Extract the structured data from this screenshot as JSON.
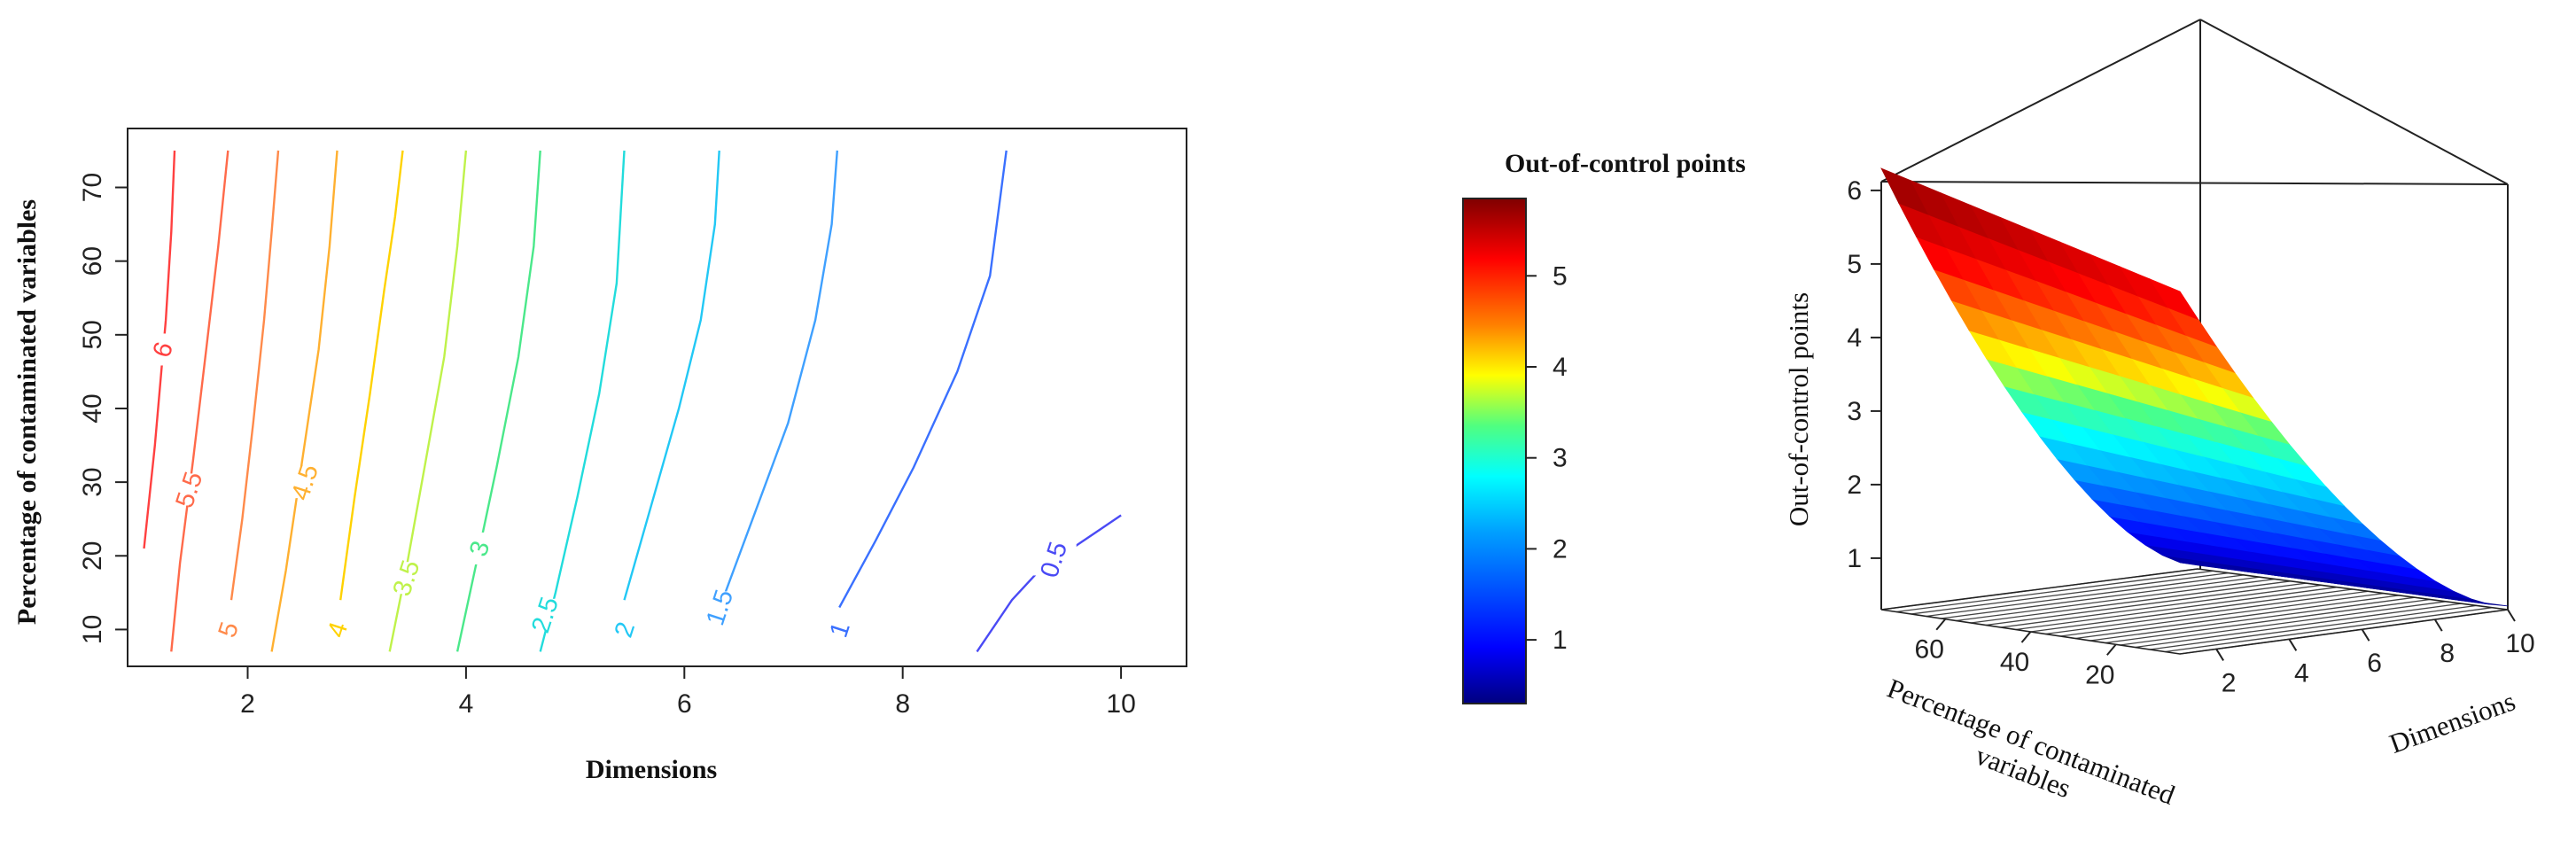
{
  "colors": {
    "jet": [
      "#00007f",
      "#0000ff",
      "#007fff",
      "#00ffff",
      "#7fff7f",
      "#ffff00",
      "#ff7f00",
      "#ff0000",
      "#7f0000"
    ],
    "axis": "#222222",
    "mesh": "#333333"
  },
  "chart_data": [
    {
      "type": "contour",
      "xlabel": "Dimensions",
      "ylabel": "Percentage of contaminated variables",
      "xlim": [
        0.9,
        10.6
      ],
      "ylim": [
        5,
        78
      ],
      "xticks": [
        2,
        4,
        6,
        8,
        10
      ],
      "yticks": [
        10,
        20,
        30,
        40,
        50,
        60,
        70
      ],
      "grid": false,
      "levels": [
        {
          "level": "6",
          "value": 6,
          "color": "#ff4040",
          "line": [
            [
              1.05,
              21
            ],
            [
              1.15,
              35
            ],
            [
              1.25,
              52
            ],
            [
              1.3,
              64
            ],
            [
              1.33,
              75
            ]
          ],
          "label_at": [
            1.22,
            48
          ]
        },
        {
          "level": "5.5",
          "value": 5.5,
          "color": "#ff6a4a",
          "line": [
            [
              1.3,
              7
            ],
            [
              1.38,
              19
            ],
            [
              1.5,
              33
            ],
            [
              1.62,
              48
            ],
            [
              1.73,
              62
            ],
            [
              1.82,
              75
            ]
          ],
          "label_at": [
            1.46,
            29
          ]
        },
        {
          "level": "5",
          "value": 5,
          "color": "#ff8a4a",
          "line": [
            [
              1.85,
              14
            ],
            [
              1.95,
              25
            ],
            [
              2.05,
              38
            ],
            [
              2.15,
              52
            ],
            [
              2.22,
              64
            ],
            [
              2.28,
              75
            ]
          ],
          "label_at": [
            1.82,
            10
          ]
        },
        {
          "level": "4.5",
          "value": 4.5,
          "color": "#ffb030",
          "line": [
            [
              2.22,
              7
            ],
            [
              2.35,
              18
            ],
            [
              2.5,
              33
            ],
            [
              2.65,
              48
            ],
            [
              2.75,
              62
            ],
            [
              2.82,
              75
            ]
          ],
          "label_at": [
            2.52,
            30
          ]
        },
        {
          "level": "4",
          "value": 4,
          "color": "#ffd200",
          "line": [
            [
              2.85,
              14
            ],
            [
              2.98,
              28
            ],
            [
              3.12,
              42
            ],
            [
              3.25,
              56
            ],
            [
              3.35,
              66
            ],
            [
              3.42,
              75
            ]
          ],
          "label_at": [
            2.82,
            10
          ]
        },
        {
          "level": "3.5",
          "value": 3.5,
          "color": "#bff24a",
          "line": [
            [
              3.3,
              7
            ],
            [
              3.45,
              18
            ],
            [
              3.62,
              32
            ],
            [
              3.8,
              47
            ],
            [
              3.92,
              62
            ],
            [
              4.0,
              75
            ]
          ],
          "label_at": [
            3.45,
            17
          ]
        },
        {
          "level": "3",
          "value": 3,
          "color": "#4ae88a",
          "line": [
            [
              3.92,
              7
            ],
            [
              4.08,
              18
            ],
            [
              4.28,
              32
            ],
            [
              4.48,
              47
            ],
            [
              4.62,
              62
            ],
            [
              4.68,
              75
            ]
          ],
          "label_at": [
            4.12,
            21
          ]
        },
        {
          "level": "2.5",
          "value": 2.5,
          "color": "#22dcdc",
          "line": [
            [
              4.68,
              7
            ],
            [
              4.82,
              15
            ],
            [
              5.02,
              28
            ],
            [
              5.22,
              42
            ],
            [
              5.38,
              57
            ],
            [
              5.45,
              75
            ]
          ],
          "label_at": [
            4.72,
            12
          ]
        },
        {
          "level": "2",
          "value": 2,
          "color": "#22c8f5",
          "line": [
            [
              5.45,
              14
            ],
            [
              5.7,
              27
            ],
            [
              5.95,
              40
            ],
            [
              6.15,
              52
            ],
            [
              6.28,
              65
            ],
            [
              6.32,
              75
            ]
          ],
          "label_at": [
            5.45,
            10
          ]
        },
        {
          "level": "1.5",
          "value": 1.5,
          "color": "#3fa0ff",
          "line": [
            [
              6.35,
              14
            ],
            [
              6.65,
              26
            ],
            [
              6.95,
              38
            ],
            [
              7.2,
              52
            ],
            [
              7.35,
              65
            ],
            [
              7.4,
              75
            ]
          ],
          "label_at": [
            6.32,
            13
          ]
        },
        {
          "level": "1",
          "value": 1,
          "color": "#3a70ff",
          "line": [
            [
              7.42,
              13
            ],
            [
              7.75,
              22
            ],
            [
              8.1,
              32
            ],
            [
              8.5,
              45
            ],
            [
              8.8,
              58
            ],
            [
              8.95,
              75
            ]
          ],
          "label_at": [
            7.42,
            10
          ]
        },
        {
          "level": "0.5",
          "value": 0.5,
          "color": "#4a4af5",
          "line": [
            [
              8.68,
              7
            ],
            [
              9.0,
              14
            ],
            [
              9.25,
              18
            ],
            [
              9.55,
              21
            ],
            [
              9.8,
              23.5
            ],
            [
              10.0,
              25.5
            ]
          ],
          "label_at": [
            9.38,
            19.5
          ]
        }
      ]
    },
    {
      "type": "colorbar",
      "title": "Out-of-control points",
      "range": [
        0.3,
        5.85
      ],
      "ticks": [
        1,
        2,
        3,
        4,
        5
      ]
    },
    {
      "type": "surface",
      "zlabel": "Out-of-control points",
      "xlabel": "Dimensions",
      "ylabel": "Percentage of contaminated variables",
      "zticks": [
        1,
        2,
        3,
        4,
        5,
        6
      ],
      "xticks": [
        2,
        4,
        6,
        8,
        10
      ],
      "yticks": [
        20,
        40,
        60
      ],
      "zrange": [
        0.3,
        6.3
      ],
      "x_range": [
        1,
        10
      ],
      "y_range": [
        5,
        75
      ]
    }
  ]
}
